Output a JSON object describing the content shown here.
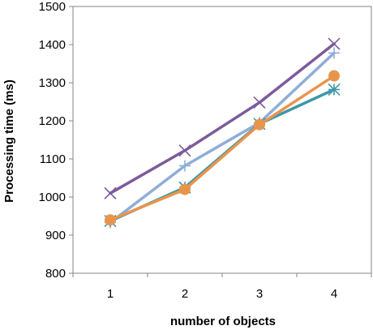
{
  "chart_data": {
    "type": "line",
    "title": "",
    "xlabel": "number of objects",
    "ylabel": "Processing time (ms)",
    "categories": [
      "1",
      "2",
      "3",
      "4"
    ],
    "ylim": [
      800,
      1500
    ],
    "yticks": [
      800,
      900,
      1000,
      1100,
      1200,
      1300,
      1400,
      1500
    ],
    "grid": false,
    "legend": false,
    "series": [
      {
        "color": "#7d5a9c",
        "marker": "x",
        "values": [
          1010,
          1122,
          1248,
          1402
        ]
      },
      {
        "color": "#8fadd8",
        "marker": "plus",
        "values": [
          933,
          1082,
          1195,
          1378
        ]
      },
      {
        "color": "#3d98a6",
        "marker": "asterisk",
        "values": [
          937,
          1025,
          1192,
          1282
        ]
      },
      {
        "color": "#e8954c",
        "marker": "circle",
        "values": [
          940,
          1020,
          1190,
          1318
        ]
      }
    ]
  }
}
